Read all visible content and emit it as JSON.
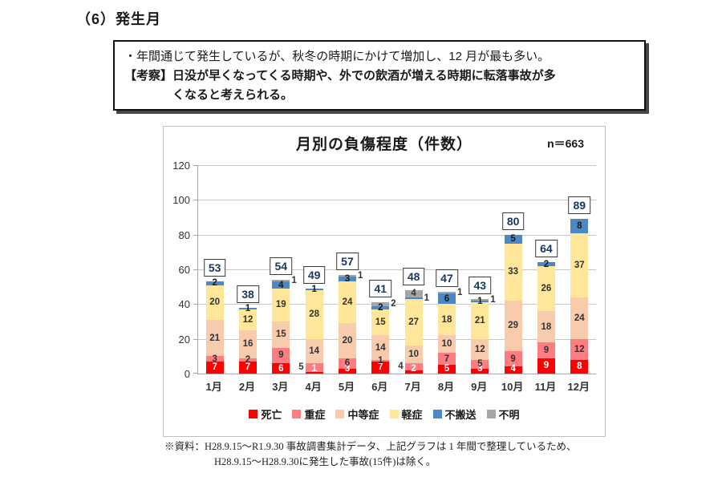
{
  "page": {
    "title": "（6）発生月"
  },
  "callout": {
    "line1": "・年間通じて発生しているが、秋冬の時期にかけて増加し、12 月が最も多い。",
    "line2": "【考察】日没が早くなってくる時期や、外での飲酒が増える時期に転落事故が多",
    "line3": "くなると考えられる。"
  },
  "chart": {
    "title": "月別の負傷程度（件数）",
    "n_label": "n＝663"
  },
  "chart_data": {
    "type": "bar",
    "stacked": true,
    "title": "月別の負傷程度（件数）",
    "n": 663,
    "categories": [
      "1月",
      "2月",
      "3月",
      "4月",
      "5月",
      "6月",
      "7月",
      "8月",
      "9月",
      "10月",
      "11月",
      "12月"
    ],
    "series": [
      {
        "name": "死亡",
        "color": "#FF0000",
        "text_color": "#FFFFFF",
        "values": [
          7,
          7,
          6,
          1,
          3,
          7,
          2,
          5,
          3,
          4,
          9,
          8
        ]
      },
      {
        "name": "重症",
        "color": "#FF7C80",
        "text_color": "#333333",
        "values": [
          3,
          2,
          9,
          5,
          6,
          1,
          4,
          7,
          5,
          9,
          9,
          12
        ]
      },
      {
        "name": "中等症",
        "color": "#F8CBAD",
        "text_color": "#333333",
        "values": [
          21,
          16,
          15,
          14,
          20,
          14,
          10,
          10,
          12,
          29,
          18,
          24
        ]
      },
      {
        "name": "軽症",
        "color": "#FFE699",
        "text_color": "#333333",
        "values": [
          20,
          12,
          19,
          28,
          24,
          15,
          27,
          18,
          21,
          33,
          26,
          37
        ]
      },
      {
        "name": "不搬送",
        "color": "#4E87C6",
        "text_color": "#1a1a1a",
        "values": [
          2,
          1,
          4,
          1,
          3,
          2,
          1,
          6,
          1,
          5,
          2,
          8
        ]
      },
      {
        "name": "不明",
        "color": "#A6A6A6",
        "text_color": "#333333",
        "values": [
          0,
          0,
          1,
          0,
          1,
          2,
          4,
          1,
          1,
          0,
          0,
          0
        ]
      }
    ],
    "totals": [
      53,
      38,
      54,
      49,
      57,
      41,
      48,
      47,
      43,
      80,
      64,
      89
    ],
    "ylim": [
      0,
      120
    ],
    "yticks": [
      0,
      20,
      40,
      60,
      80,
      100,
      120
    ],
    "grid": true,
    "legend_position": "bottom",
    "label_overrides": [
      {
        "month": "3月",
        "series": "不明",
        "side": "right"
      },
      {
        "month": "4月",
        "series": "重症",
        "side": "left"
      },
      {
        "month": "5月",
        "series": "不明",
        "side": "right"
      },
      {
        "month": "6月",
        "series": "不明",
        "side": "right"
      },
      {
        "month": "7月",
        "series": "重症",
        "side": "left"
      },
      {
        "month": "7月",
        "series": "不搬送",
        "side": "right"
      },
      {
        "month": "8月",
        "series": "不明",
        "side": "right"
      },
      {
        "month": "9月",
        "series": "不明",
        "side": "right"
      }
    ]
  },
  "footnote": {
    "line1": "※資料：H28.9.15～R1.9.30 事故調書集計データ、上記グラフは 1 年間で整理しているため、",
    "line2": "H28.9.15～H28.9.30に発生した事故(15件)は除く。"
  }
}
